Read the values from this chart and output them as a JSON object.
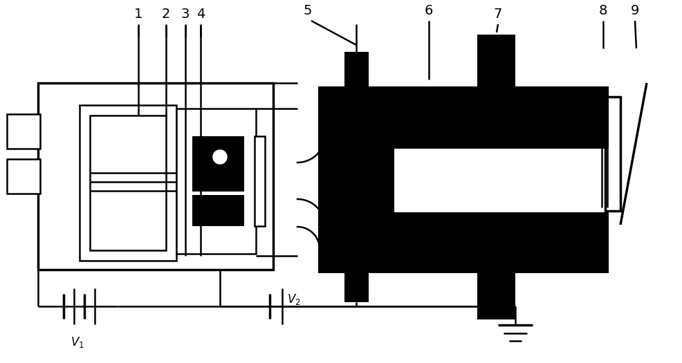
{
  "fig_width": 9.87,
  "fig_height": 5.25,
  "bg_color": "#ffffff",
  "lw": 1.8,
  "lw_thick": 2.5
}
